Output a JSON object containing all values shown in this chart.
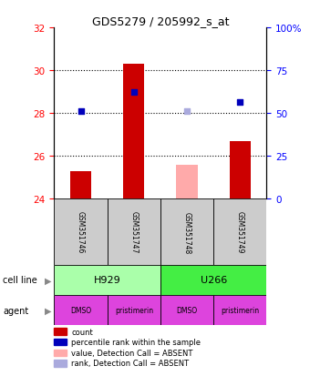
{
  "title": "GDS5279 / 205992_s_at",
  "samples": [
    "GSM351746",
    "GSM351747",
    "GSM351748",
    "GSM351749"
  ],
  "bar_values": [
    25.3,
    30.3,
    null,
    26.7
  ],
  "bar_absent_values": [
    null,
    null,
    25.6,
    null
  ],
  "dot_values": [
    28.1,
    29.0,
    28.1,
    28.5
  ],
  "dot_absent_values": [
    null,
    null,
    28.1,
    null
  ],
  "dot_present": [
    true,
    true,
    false,
    true
  ],
  "ylim": [
    24,
    32
  ],
  "yticks_left": [
    24,
    26,
    28,
    30,
    32
  ],
  "yticks_right_labels": [
    "0",
    "25",
    "50",
    "75",
    "100%"
  ],
  "yticks_right_vals": [
    24,
    26,
    28,
    30,
    32
  ],
  "bar_color_present": "#cc0000",
  "bar_color_absent": "#ffaaaa",
  "dot_color_present": "#0000bb",
  "dot_color_absent": "#aaaadd",
  "cell_lines": [
    [
      "H929",
      0,
      2,
      "#aaffaa"
    ],
    [
      "U266",
      2,
      4,
      "#44ee44"
    ]
  ],
  "agents": [
    "DMSO",
    "pristimerin",
    "DMSO",
    "pristimerin"
  ],
  "agent_color": "#dd44dd",
  "legend_items": [
    {
      "label": "count",
      "color": "#cc0000"
    },
    {
      "label": "percentile rank within the sample",
      "color": "#0000bb"
    },
    {
      "label": "value, Detection Call = ABSENT",
      "color": "#ffaaaa"
    },
    {
      "label": "rank, Detection Call = ABSENT",
      "color": "#aaaadd"
    }
  ],
  "bar_width": 0.4,
  "dot_size": 20
}
